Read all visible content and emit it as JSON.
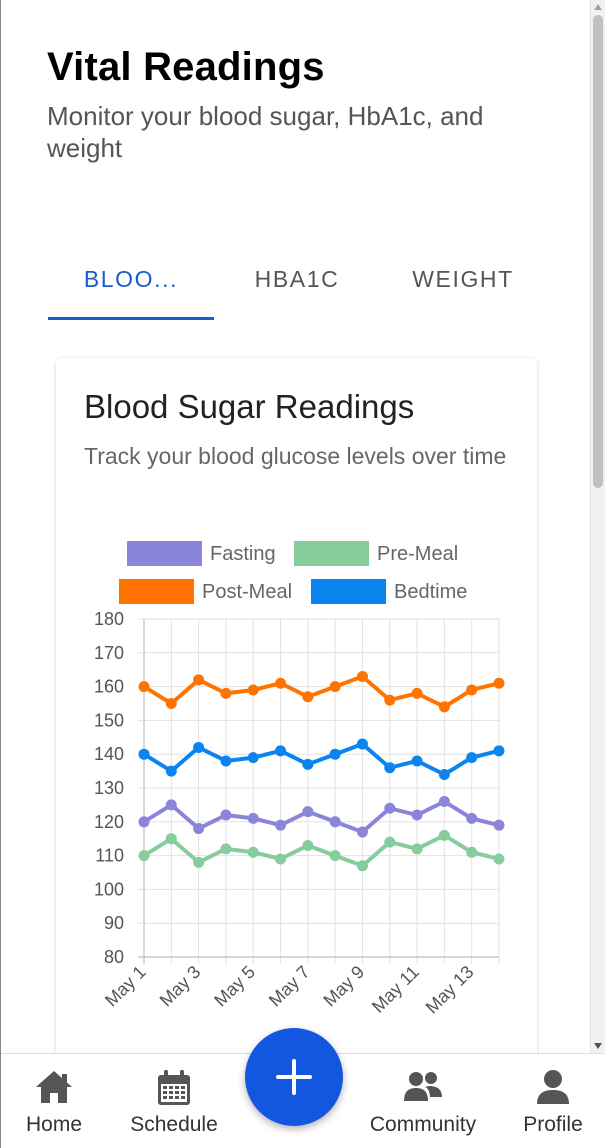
{
  "header": {
    "title": "Vital Readings",
    "subtitle": "Monitor your blood sugar, HbA1c, and weight"
  },
  "tabs": [
    {
      "label": "BLOO...",
      "active": true
    },
    {
      "label": "HBA1C",
      "active": false
    },
    {
      "label": "WEIGHT",
      "active": false
    }
  ],
  "card": {
    "title": "Blood Sugar Readings",
    "subtitle": "Track your blood glucose levels over time"
  },
  "chart_data": {
    "type": "line",
    "x": [
      "May 1",
      "May 2",
      "May 3",
      "May 4",
      "May 5",
      "May 6",
      "May 7",
      "May 8",
      "May 9",
      "May 10",
      "May 11",
      "May 12",
      "May 13",
      "May 14"
    ],
    "x_tick_labels": [
      "May 1",
      "May 3",
      "May 5",
      "May 7",
      "May 9",
      "May 11",
      "May 13"
    ],
    "ylim": [
      80,
      180
    ],
    "y_ticks": [
      80,
      90,
      100,
      110,
      120,
      130,
      140,
      150,
      160,
      170,
      180
    ],
    "grid": true,
    "legend_position": "top",
    "series": [
      {
        "name": "Fasting",
        "color": "#8b85d9",
        "values": [
          120,
          125,
          118,
          122,
          121,
          119,
          123,
          120,
          117,
          124,
          122,
          126,
          121,
          119
        ]
      },
      {
        "name": "Pre-Meal",
        "color": "#86cc9d",
        "values": [
          110,
          115,
          108,
          112,
          111,
          109,
          113,
          110,
          107,
          114,
          112,
          116,
          111,
          109
        ]
      },
      {
        "name": "Post-Meal",
        "color": "#ff7300",
        "values": [
          160,
          155,
          162,
          158,
          159,
          161,
          157,
          160,
          163,
          156,
          158,
          154,
          159,
          161
        ]
      },
      {
        "name": "Bedtime",
        "color": "#0a84f0",
        "values": [
          140,
          135,
          142,
          138,
          139,
          141,
          137,
          140,
          143,
          136,
          138,
          134,
          139,
          141
        ]
      }
    ]
  },
  "fab": {
    "icon": "plus-icon"
  },
  "nav": {
    "items": [
      {
        "label": "Home",
        "icon": "home-icon"
      },
      {
        "label": "Schedule",
        "icon": "calendar-icon"
      },
      {
        "label": "Community",
        "icon": "community-icon"
      },
      {
        "label": "Profile",
        "icon": "profile-icon"
      }
    ]
  }
}
